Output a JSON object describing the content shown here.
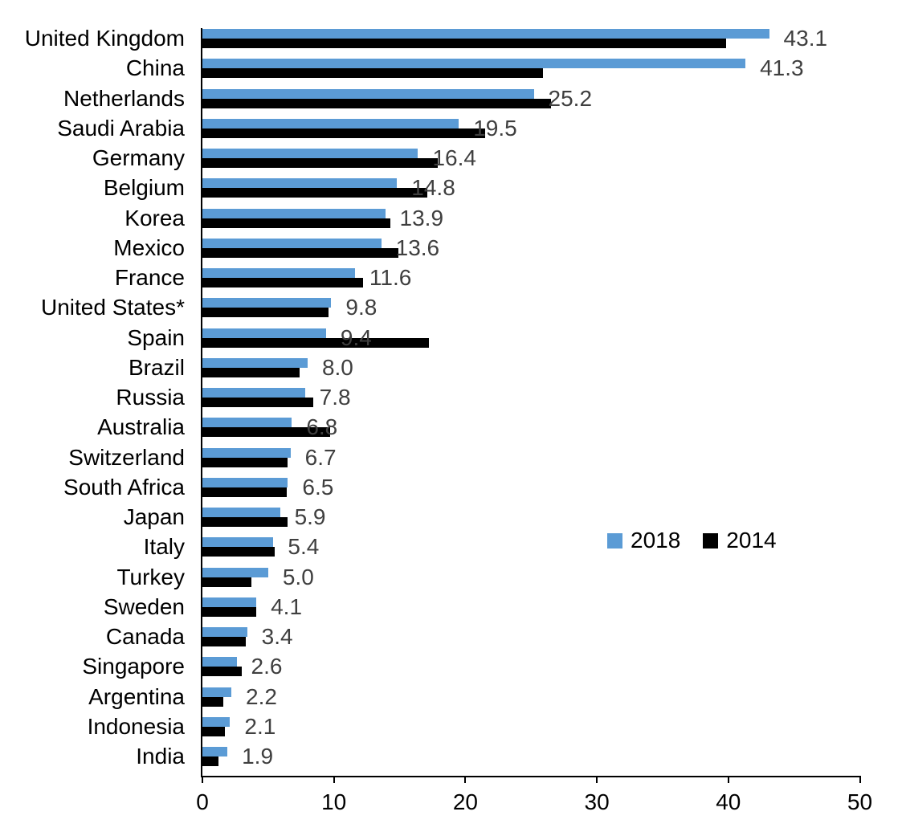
{
  "chart_data": {
    "type": "bar",
    "orientation": "horizontal",
    "title": "",
    "xlabel": "",
    "ylabel": "",
    "xlim": [
      0,
      50
    ],
    "xticks": [
      0,
      10,
      20,
      30,
      40,
      50
    ],
    "grid": false,
    "legend_position": "middle-right",
    "axis_color": "#000000",
    "value_label_color": "#3F3F3F",
    "categories": [
      "United Kingdom",
      "China",
      "Netherlands",
      "Saudi Arabia",
      "Germany",
      "Belgium",
      "Korea",
      "Mexico",
      "France",
      "United States*",
      "Spain",
      "Brazil",
      "Russia",
      "Australia",
      "Switzerland",
      "South Africa",
      "Japan",
      "Italy",
      "Turkey",
      "Sweden",
      "Canada",
      "Singapore",
      "Argentina",
      "Indonesia",
      "India"
    ],
    "series": [
      {
        "name": "2018",
        "color": "#5B9BD5",
        "values": [
          43.1,
          41.3,
          25.2,
          19.5,
          16.4,
          14.8,
          13.9,
          13.6,
          11.6,
          9.8,
          9.4,
          8.0,
          7.8,
          6.8,
          6.7,
          6.5,
          5.9,
          5.4,
          5.0,
          4.1,
          3.4,
          2.6,
          2.2,
          2.1,
          1.9
        ],
        "value_labels": [
          "43.1",
          "41.3",
          "25.2",
          "19.5",
          "16.4",
          "14.8",
          "13.9",
          "13.6",
          "11.6",
          "9.8",
          "9.4",
          "8.0",
          "7.8",
          "6.8",
          "6.7",
          "6.5",
          "5.9",
          "5.4",
          "5.0",
          "4.1",
          "3.4",
          "2.6",
          "2.2",
          "2.1",
          "1.9"
        ]
      },
      {
        "name": "2014",
        "color": "#000000",
        "values": [
          39.8,
          25.9,
          26.5,
          21.5,
          17.9,
          17.1,
          14.3,
          14.9,
          12.2,
          9.6,
          17.2,
          7.4,
          8.4,
          9.7,
          6.5,
          6.4,
          6.5,
          5.5,
          3.7,
          4.1,
          3.3,
          3.0,
          1.6,
          1.7,
          1.2
        ],
        "value_labels": []
      }
    ]
  }
}
